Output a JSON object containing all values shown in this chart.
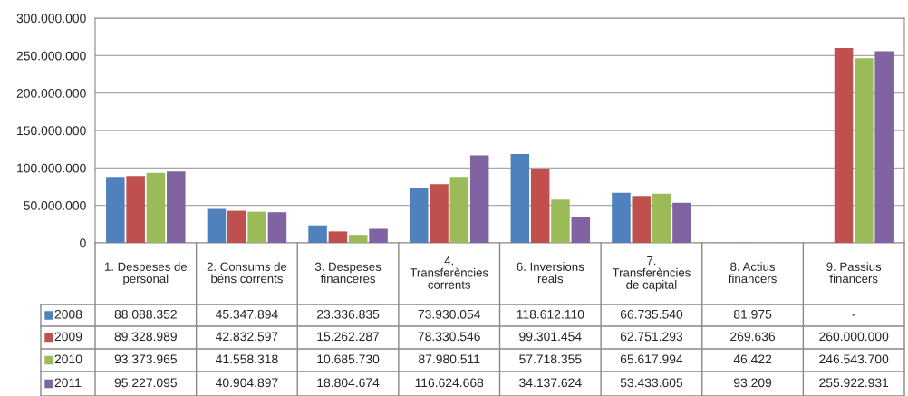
{
  "chart_data": {
    "type": "bar",
    "categories": [
      "1. Despeses de\npersonal",
      "2. Consums de\nbéns corrents",
      "3. Despeses\nfinanceres",
      "4.\nTransferències\ncorrents",
      "6. Inversions\nreals",
      "7.\nTransferències\nde capital",
      "8. Actius\nfinancers",
      "9. Passius\nfinancers"
    ],
    "series": [
      {
        "name": "2008",
        "color": "#4f81bd",
        "values": [
          88088352,
          45347894,
          23336835,
          73930054,
          118612110,
          66735540,
          81975,
          null
        ],
        "value_labels": [
          "88.088.352",
          "45.347.894",
          "23.336.835",
          "73.930.054",
          "118.612.110",
          "66.735.540",
          "81.975",
          "-"
        ]
      },
      {
        "name": "2009",
        "color": "#c0504d",
        "values": [
          89328989,
          42832597,
          15262287,
          78330546,
          99301454,
          62751293,
          269636,
          260000000
        ],
        "value_labels": [
          "89.328.989",
          "42.832.597",
          "15.262.287",
          "78.330.546",
          "99.301.454",
          "62.751.293",
          "269.636",
          "260.000.000"
        ]
      },
      {
        "name": "2010",
        "color": "#9bbb59",
        "values": [
          93373965,
          41558318,
          10685730,
          87980511,
          57718355,
          65617994,
          46422,
          246543700
        ],
        "value_labels": [
          "93.373.965",
          "41.558.318",
          "10.685.730",
          "87.980.511",
          "57.718.355",
          "65.617.994",
          "46.422",
          "246.543.700"
        ]
      },
      {
        "name": "2011",
        "color": "#8064a2",
        "values": [
          95227095,
          40904897,
          18804674,
          116624668,
          34137624,
          53433605,
          93209,
          255922931
        ],
        "value_labels": [
          "95.227.095",
          "40.904.897",
          "18.804.674",
          "116.624.668",
          "34.137.624",
          "53.433.605",
          "93.209",
          "255.922.931"
        ]
      }
    ],
    "ylim": [
      0,
      300000000
    ],
    "yticks": [
      0,
      {
        "value": 50000000,
        "label": "50.000.000"
      },
      {
        "value": 100000000,
        "label": "100.000.000"
      },
      {
        "value": 150000000,
        "label": "150.000.000"
      },
      {
        "value": 200000000,
        "label": "200.000.000"
      },
      {
        "value": 250000000,
        "label": "250.000.000"
      },
      {
        "value": 300000000,
        "label": "300.000.000"
      }
    ],
    "grid": "y",
    "legend": "bottom left"
  }
}
